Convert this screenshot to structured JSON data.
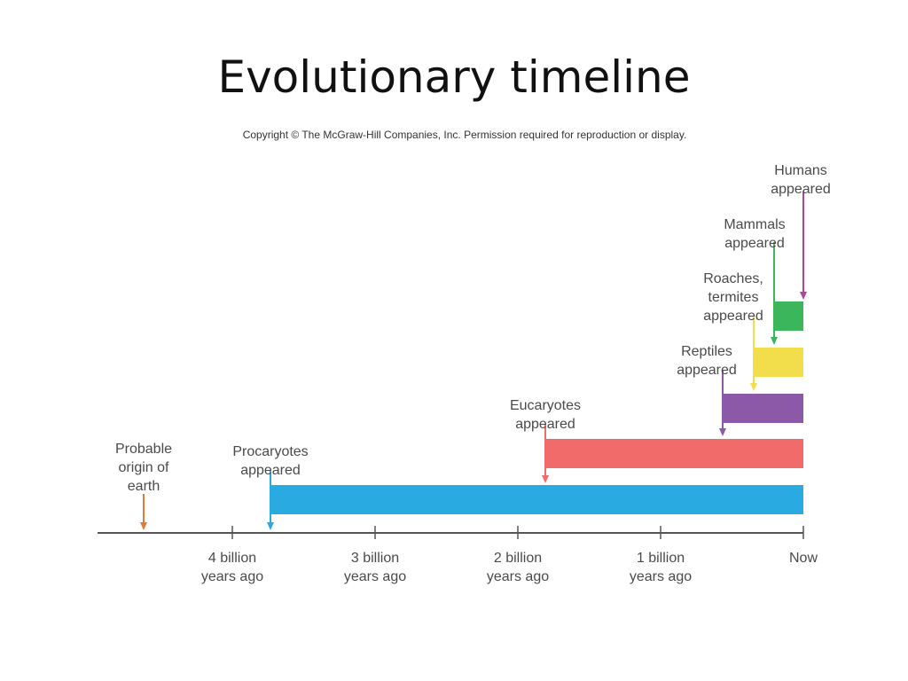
{
  "slide": {
    "title": "Evolutionary timeline",
    "copyright": "Copyright © The McGraw-Hill Companies, Inc. Permission required for reproduction or display."
  },
  "axis": {
    "ticks": [
      {
        "line1": "4 billion",
        "line2": "years ago",
        "value": 4
      },
      {
        "line1": "3 billion",
        "line2": "years ago",
        "value": 3
      },
      {
        "line1": "2 billion",
        "line2": "years ago",
        "value": 2
      },
      {
        "line1": "1 billion",
        "line2": "years ago",
        "value": 1
      },
      {
        "line1": "Now",
        "line2": "",
        "value": 0
      }
    ]
  },
  "events": [
    {
      "id": "earth",
      "label_lines": [
        "Probable",
        "origin of",
        "earth"
      ],
      "color": "#e07b39",
      "bar": false
    },
    {
      "id": "procaryotes",
      "label_lines": [
        "Procaryotes",
        "appeared"
      ],
      "color": "#29abe2",
      "bar": true
    },
    {
      "id": "eucaryotes",
      "label_lines": [
        "Eucaryotes",
        "appeared"
      ],
      "color": "#f26b6b",
      "bar": true
    },
    {
      "id": "reptiles",
      "label_lines": [
        "Reptiles",
        "appeared"
      ],
      "color": "#8b59a8",
      "bar": true
    },
    {
      "id": "roaches",
      "label_lines": [
        "Roaches,",
        "termites",
        "appeared"
      ],
      "color": "#f2dd4a",
      "bar": true
    },
    {
      "id": "mammals",
      "label_lines": [
        "Mammals",
        "appeared"
      ],
      "color": "#3cb65a",
      "bar": true
    },
    {
      "id": "humans",
      "label_lines": [
        "Humans",
        "appeared"
      ],
      "color": "#b3429b",
      "bar": false
    }
  ]
}
